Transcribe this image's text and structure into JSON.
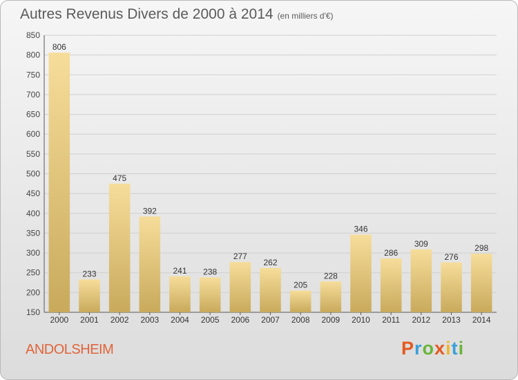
{
  "header": {
    "title": "Autres Revenus Divers de 2000 à 2014",
    "subtitle": "(en milliers d'€)"
  },
  "footer": {
    "commune": "ANDOLSHEIM",
    "logo": {
      "p": "P",
      "r": "r",
      "o": "o",
      "x": "x",
      "i1": "i",
      "t": "t",
      "i2": "i"
    }
  },
  "colors": {
    "bar_top": "#f6dd9a",
    "bar_bottom": "#c9aa5c",
    "grid": "#cfcfcf",
    "commune": "#e0643a"
  },
  "chart_data": {
    "type": "bar",
    "title": "Autres Revenus Divers de 2000 à 2014",
    "subtitle": "(en milliers d'€)",
    "categories": [
      "2000",
      "2001",
      "2002",
      "2003",
      "2004",
      "2005",
      "2006",
      "2007",
      "2008",
      "2009",
      "2010",
      "2011",
      "2012",
      "2013",
      "2014"
    ],
    "values": [
      806,
      233,
      475,
      392,
      241,
      238,
      277,
      262,
      205,
      228,
      346,
      286,
      309,
      276,
      298
    ],
    "ylim": [
      150,
      850
    ],
    "yticks": [
      150,
      200,
      250,
      300,
      350,
      400,
      450,
      500,
      550,
      600,
      650,
      700,
      750,
      800,
      850
    ],
    "grid": true,
    "data_labels": true
  }
}
